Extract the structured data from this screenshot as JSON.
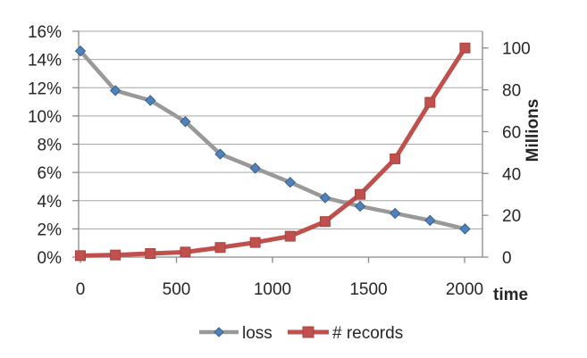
{
  "chart_data": {
    "type": "line",
    "title": "",
    "xlabel": "time",
    "x_axis": {
      "tick_values": [
        0,
        500,
        1000,
        1500,
        2000
      ],
      "min": 0,
      "max": 2093
    },
    "x": [
      0,
      182,
      364,
      546,
      728,
      910,
      1092,
      1274,
      1456,
      1638,
      1820,
      2002
    ],
    "series": [
      {
        "name": "loss",
        "axis": "left",
        "marker": "diamond",
        "line_color": "#999999",
        "marker_color": "#4F81BD",
        "marker_edge_color": "#3A6186",
        "values": [
          14.6,
          11.8,
          11.1,
          9.6,
          7.3,
          6.3,
          5.3,
          4.2,
          3.6,
          3.1,
          2.6,
          2.0
        ]
      },
      {
        "name": "# records",
        "axis": "right",
        "marker": "square",
        "line_color": "#C0504D",
        "marker_color": "#C0504D",
        "marker_edge_color": "#A8453F",
        "values": [
          0.7,
          1,
          1.7,
          2.4,
          4.6,
          7,
          10,
          17,
          30,
          47,
          74,
          100
        ]
      }
    ],
    "left_axis": {
      "unit": "%",
      "min": 0,
      "max": 16,
      "step": 2,
      "tick_labels": [
        "0%",
        "2%",
        "4%",
        "6%",
        "8%",
        "10%",
        "12%",
        "14%",
        "16%"
      ]
    },
    "right_axis": {
      "label": "Millions",
      "min": 0,
      "max": 108,
      "step": 20,
      "tick_labels": [
        "0",
        "20",
        "40",
        "60",
        "80",
        "100"
      ]
    },
    "legend": {
      "items": [
        "loss",
        "# records"
      ],
      "position": "bottom"
    },
    "grid": true,
    "colors": {
      "grid": "#A6A6A6",
      "axis": "#898989",
      "text": "#262626",
      "background": "#ffffff"
    }
  }
}
